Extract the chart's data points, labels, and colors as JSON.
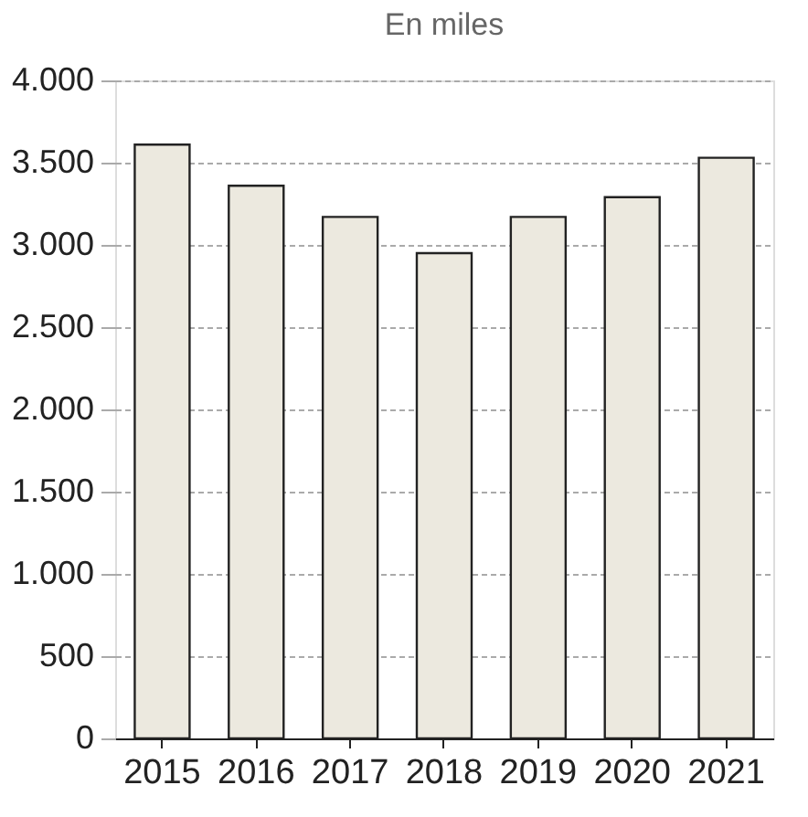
{
  "chart_data": {
    "type": "bar",
    "title": "En miles",
    "categories": [
      "2015",
      "2016",
      "2017",
      "2018",
      "2019",
      "2020",
      "2021"
    ],
    "values": [
      3610,
      3360,
      3170,
      2950,
      3170,
      3290,
      3530
    ],
    "color": "#ece9df",
    "ylim": [
      0,
      4000
    ],
    "yticks": [
      {
        "value": 0,
        "label": "0"
      },
      {
        "value": 500,
        "label": "500"
      },
      {
        "value": 1000,
        "label": "1.000"
      },
      {
        "value": 1500,
        "label": "1.500"
      },
      {
        "value": 2000,
        "label": "2.000"
      },
      {
        "value": 2500,
        "label": "2.500"
      },
      {
        "value": 3000,
        "label": "3.000"
      },
      {
        "value": 3500,
        "label": "3.500"
      },
      {
        "value": 4000,
        "label": "4.000"
      }
    ],
    "grid": "y"
  }
}
